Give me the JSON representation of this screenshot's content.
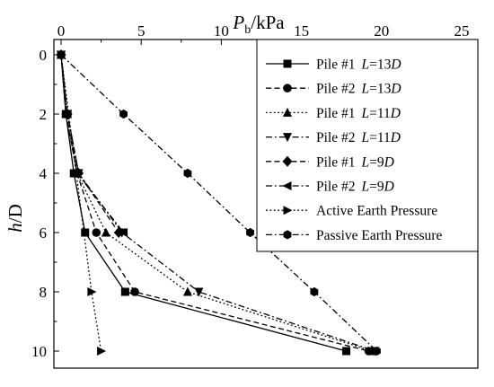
{
  "chart_data": {
    "type": "line",
    "title": "",
    "xlabel": {
      "main": "P",
      "sub": "b",
      "unit": "/kPa"
    },
    "ylabel": {
      "main": "h",
      "unit": "/D"
    },
    "x_axis_position": "top",
    "y_axis_inverted": true,
    "xlim": [
      0,
      25
    ],
    "ylim": [
      0,
      10.5
    ],
    "xticks": [
      0,
      5,
      10,
      15,
      20,
      25
    ],
    "yticks": [
      0,
      2,
      4,
      6,
      8,
      10
    ],
    "grid": false,
    "legend_placement": "top-right",
    "series": [
      {
        "name": "Pile #1",
        "L": "13",
        "L_unit": "D",
        "dash": "solid",
        "marker": "square",
        "points": [
          [
            0,
            0
          ],
          [
            0.3,
            2
          ],
          [
            0.8,
            4
          ],
          [
            1.5,
            6
          ],
          [
            4.0,
            8
          ],
          [
            17.8,
            10
          ]
        ]
      },
      {
        "name": "Pile #2",
        "L": "13",
        "L_unit": "D",
        "dash": "dash",
        "marker": "circle",
        "points": [
          [
            0,
            0
          ],
          [
            0.3,
            2
          ],
          [
            1.0,
            4
          ],
          [
            2.2,
            6
          ],
          [
            4.6,
            8
          ],
          [
            19.2,
            10
          ]
        ]
      },
      {
        "name": "Pile #1",
        "L": "11",
        "L_unit": "D",
        "dash": "dot",
        "marker": "triangle-up",
        "points": [
          [
            0,
            0
          ],
          [
            0.3,
            2
          ],
          [
            1.0,
            4
          ],
          [
            2.8,
            6
          ],
          [
            7.9,
            8
          ],
          [
            19.4,
            10
          ]
        ]
      },
      {
        "name": "Pile #2",
        "L": "11",
        "L_unit": "D",
        "dash": "dashdot",
        "marker": "triangle-down",
        "points": [
          [
            0,
            0
          ],
          [
            0.4,
            2
          ],
          [
            1.1,
            4
          ],
          [
            3.8,
            6
          ],
          [
            8.6,
            8
          ],
          [
            19.6,
            10
          ]
        ]
      },
      {
        "name": "Pile #1",
        "L": "9",
        "L_unit": "D",
        "dash": "dash",
        "marker": "diamond",
        "points": [
          [
            0,
            0
          ],
          [
            0.4,
            2
          ],
          [
            1.1,
            4
          ],
          [
            3.6,
            6
          ]
        ]
      },
      {
        "name": "Pile #2",
        "L": "9",
        "L_unit": "D",
        "dash": "dashdot",
        "marker": "triangle-left",
        "points": [
          [
            0,
            0
          ],
          [
            0.4,
            2
          ],
          [
            1.0,
            4
          ],
          [
            3.9,
            6
          ]
        ]
      },
      {
        "name": "Active Earth Pressure",
        "dash": "dot",
        "marker": "triangle-right",
        "points": [
          [
            0,
            0
          ],
          [
            1.9,
            8
          ],
          [
            2.5,
            10
          ]
        ]
      },
      {
        "name": "Passive Earth Pressure",
        "dash": "dashdot",
        "marker": "hexagon",
        "points": [
          [
            0,
            0
          ],
          [
            3.9,
            2
          ],
          [
            7.9,
            4
          ],
          [
            11.8,
            6
          ],
          [
            15.8,
            8
          ],
          [
            19.7,
            10
          ]
        ]
      }
    ]
  }
}
